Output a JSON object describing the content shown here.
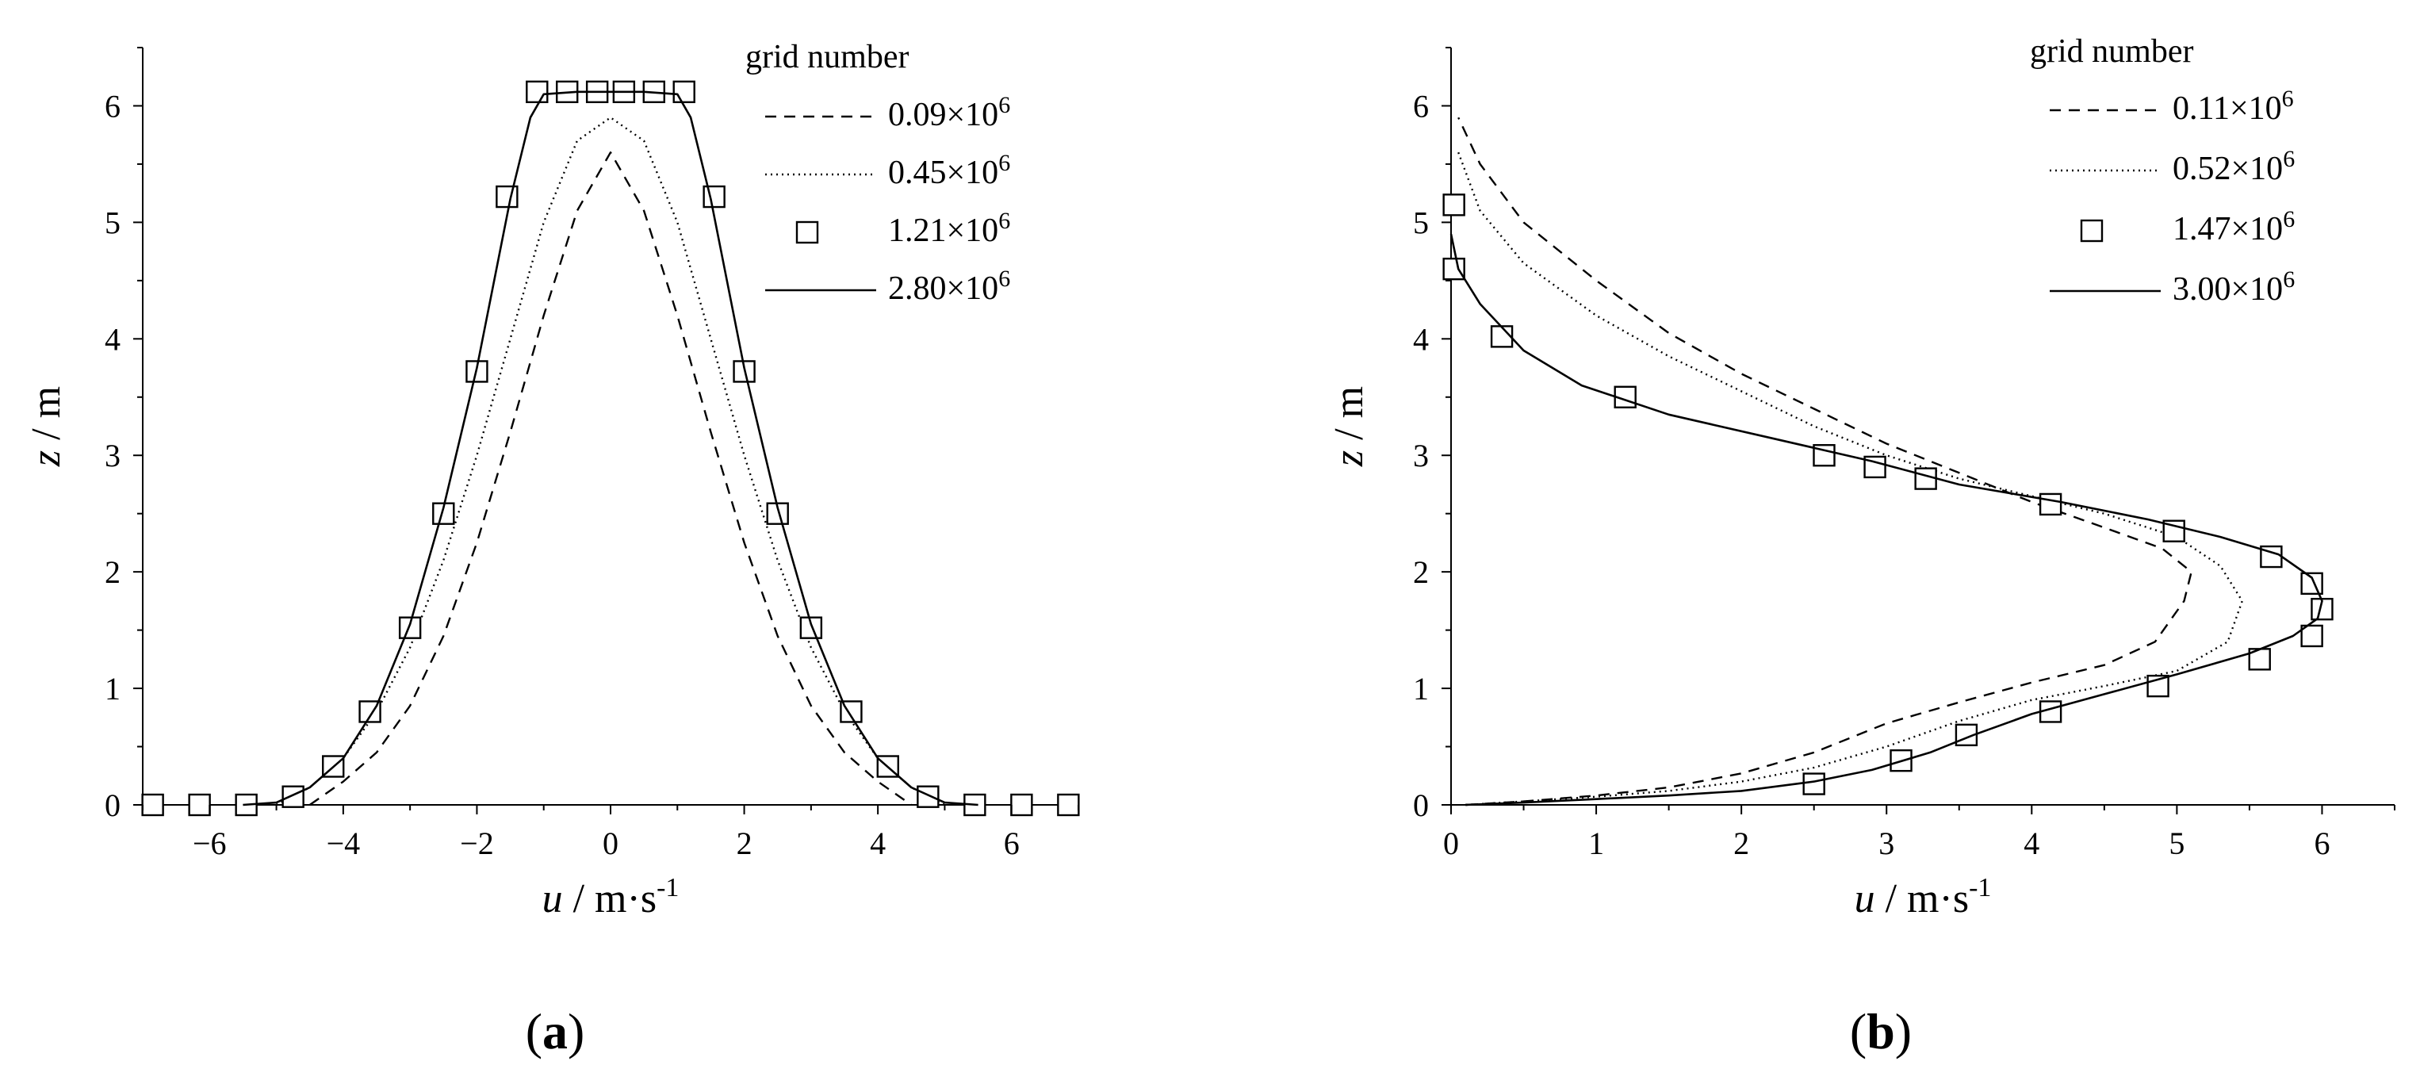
{
  "chart_data": [
    {
      "type": "line",
      "panel_label": "a",
      "xlabel": "u / m·s-1",
      "ylabel": "z / m",
      "xlim": [
        -7,
        7
      ],
      "ylim": [
        0,
        6.5
      ],
      "xticks": [
        -6,
        -4,
        -2,
        0,
        2,
        4,
        6
      ],
      "xtick_labels": [
        "−6",
        "−4",
        "−2",
        "0",
        "2",
        "4",
        "6"
      ],
      "yticks": [
        0,
        1,
        2,
        3,
        4,
        5,
        6
      ],
      "ytick_labels": [
        "0",
        "1",
        "2",
        "3",
        "4",
        "5",
        "6"
      ],
      "grid": false,
      "legend_title": "grid number",
      "legend_position": "top-right",
      "series": [
        {
          "name": "0.09×10⁶",
          "style": "dashed",
          "x": [
            -4.5,
            -4.0,
            -3.5,
            -3.0,
            -2.5,
            -2.0,
            -1.5,
            -1.0,
            -0.5,
            0.0,
            0.5,
            1.0,
            1.5,
            2.0,
            2.5,
            3.0,
            3.5,
            4.0,
            4.5
          ],
          "y": [
            0.0,
            0.2,
            0.45,
            0.85,
            1.45,
            2.25,
            3.2,
            4.2,
            5.1,
            5.6,
            5.1,
            4.2,
            3.2,
            2.25,
            1.45,
            0.85,
            0.45,
            0.2,
            0.0
          ]
        },
        {
          "name": "0.45×10⁶",
          "style": "dotted",
          "x": [
            -5.0,
            -4.5,
            -4.0,
            -3.5,
            -3.0,
            -2.5,
            -2.0,
            -1.5,
            -1.0,
            -0.5,
            0.0,
            0.5,
            1.0,
            1.5,
            2.0,
            2.5,
            3.0,
            3.5,
            4.0,
            4.5,
            5.0
          ],
          "y": [
            0.0,
            0.15,
            0.4,
            0.8,
            1.35,
            2.1,
            3.0,
            4.0,
            5.0,
            5.7,
            5.9,
            5.7,
            5.0,
            4.0,
            3.0,
            2.1,
            1.35,
            0.8,
            0.4,
            0.15,
            0.0
          ]
        },
        {
          "name": "1.21×10⁶",
          "style": "markers",
          "x": [
            -6.85,
            -6.15,
            -5.45,
            -4.75,
            -4.15,
            -3.6,
            -3.0,
            -2.5,
            -2.0,
            -1.55,
            -1.1,
            -0.65,
            -0.2,
            0.2,
            0.65,
            1.1,
            1.55,
            2.0,
            2.5,
            3.0,
            3.6,
            4.15,
            4.75,
            5.45,
            6.15,
            6.85
          ],
          "y": [
            0.0,
            0.0,
            0.0,
            0.07,
            0.33,
            0.8,
            1.52,
            2.5,
            3.72,
            5.22,
            6.12,
            6.12,
            6.12,
            6.12,
            6.12,
            6.12,
            5.22,
            3.72,
            2.5,
            1.52,
            0.8,
            0.33,
            0.07,
            0.0,
            0.0,
            0.0
          ]
        },
        {
          "name": "2.80×10⁶",
          "style": "solid",
          "x": [
            -5.5,
            -5.0,
            -4.5,
            -4.0,
            -3.5,
            -3.0,
            -2.5,
            -2.0,
            -1.5,
            -1.2,
            -1.0,
            -0.5,
            0.0,
            0.5,
            1.0,
            1.2,
            1.5,
            2.0,
            2.5,
            3.0,
            3.5,
            4.0,
            4.5,
            5.0,
            5.5
          ],
          "y": [
            0.0,
            0.02,
            0.15,
            0.4,
            0.85,
            1.55,
            2.55,
            3.75,
            5.2,
            5.9,
            6.1,
            6.12,
            6.12,
            6.12,
            6.1,
            5.9,
            5.2,
            3.75,
            2.55,
            1.55,
            0.85,
            0.4,
            0.15,
            0.02,
            0.0
          ]
        }
      ]
    },
    {
      "type": "line",
      "panel_label": "b",
      "xlabel": "u / m·s-1",
      "ylabel": "z / m",
      "xlim": [
        0,
        6.5
      ],
      "ylim": [
        0,
        6.5
      ],
      "xticks": [
        0,
        1,
        2,
        3,
        4,
        5,
        6
      ],
      "xtick_labels": [
        "0",
        "1",
        "2",
        "3",
        "4",
        "5",
        "6"
      ],
      "yticks": [
        0,
        1,
        2,
        3,
        4,
        5,
        6
      ],
      "ytick_labels": [
        "0",
        "1",
        "2",
        "3",
        "4",
        "5",
        "6"
      ],
      "grid": false,
      "legend_title": "grid number",
      "legend_position": "top-right",
      "series": [
        {
          "name": "0.11×10⁶",
          "style": "dashed",
          "x": [
            0.1,
            0.5,
            1.0,
            1.5,
            2.0,
            2.5,
            3.0,
            3.5,
            4.0,
            4.5,
            4.85,
            5.05,
            5.1,
            4.9,
            4.5,
            4.0,
            3.5,
            3.0,
            2.5,
            2.0,
            1.5,
            1.0,
            0.5,
            0.2,
            0.05
          ],
          "y": [
            0.0,
            0.03,
            0.08,
            0.15,
            0.27,
            0.45,
            0.7,
            0.88,
            1.05,
            1.2,
            1.4,
            1.75,
            2.0,
            2.2,
            2.38,
            2.6,
            2.85,
            3.1,
            3.4,
            3.7,
            4.05,
            4.5,
            5.0,
            5.5,
            5.9
          ]
        },
        {
          "name": "0.52×10⁶",
          "style": "dotted",
          "x": [
            0.1,
            0.5,
            1.0,
            1.5,
            2.0,
            2.5,
            3.0,
            3.5,
            4.0,
            4.5,
            5.0,
            5.35,
            5.45,
            5.3,
            5.0,
            4.5,
            4.0,
            3.5,
            3.0,
            2.5,
            2.0,
            1.5,
            1.0,
            0.5,
            0.2,
            0.05
          ],
          "y": [
            0.0,
            0.03,
            0.07,
            0.12,
            0.2,
            0.32,
            0.5,
            0.72,
            0.9,
            1.02,
            1.15,
            1.4,
            1.75,
            2.05,
            2.3,
            2.5,
            2.65,
            2.8,
            3.0,
            3.25,
            3.55,
            3.85,
            4.2,
            4.65,
            5.1,
            5.6
          ]
        },
        {
          "name": "1.47×10⁶",
          "style": "markers",
          "x": [
            0.02,
            0.02,
            0.35,
            1.2,
            2.57,
            2.92,
            3.27,
            4.13,
            4.98,
            5.65,
            5.93,
            6.0,
            5.93,
            5.57,
            4.87,
            4.13,
            3.55,
            3.1,
            2.5
          ],
          "y": [
            5.15,
            4.6,
            4.02,
            3.5,
            3.0,
            2.9,
            2.8,
            2.58,
            2.35,
            2.13,
            1.9,
            1.68,
            1.45,
            1.25,
            1.02,
            0.8,
            0.6,
            0.38,
            0.18
          ]
        },
        {
          "name": "3.00×10⁶",
          "style": "solid",
          "x": [
            0.1,
            0.5,
            1.0,
            1.5,
            2.0,
            2.5,
            2.9,
            3.3,
            3.6,
            4.0,
            4.5,
            5.0,
            5.5,
            5.8,
            5.97,
            6.0,
            5.93,
            5.7,
            5.3,
            4.8,
            4.2,
            3.5,
            2.9,
            2.2,
            1.5,
            0.9,
            0.5,
            0.2,
            0.05,
            0.0
          ],
          "y": [
            0.0,
            0.02,
            0.05,
            0.08,
            0.12,
            0.2,
            0.3,
            0.45,
            0.6,
            0.78,
            0.95,
            1.12,
            1.3,
            1.45,
            1.6,
            1.75,
            1.95,
            2.15,
            2.3,
            2.45,
            2.6,
            2.75,
            2.95,
            3.15,
            3.35,
            3.6,
            3.9,
            4.3,
            4.6,
            4.9
          ]
        }
      ]
    }
  ]
}
